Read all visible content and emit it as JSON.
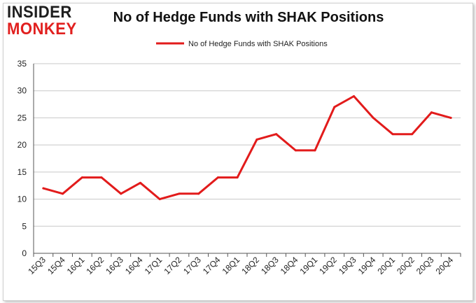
{
  "logo": {
    "line1": "INSIDER",
    "line2": "MONKEY"
  },
  "colors": {
    "series": "#e21b1b",
    "grid": "#c8c8c8",
    "axis": "#555555",
    "logo_dark": "#1e1e1e",
    "logo_red": "#e1201f"
  },
  "chart_data": {
    "type": "line",
    "title": "No of Hedge Funds with SHAK Positions",
    "xlabel": "",
    "ylabel": "",
    "categories": [
      "15Q3",
      "15Q4",
      "16Q1",
      "16Q2",
      "16Q3",
      "16Q4",
      "17Q1",
      "17Q2",
      "17Q3",
      "17Q4",
      "18Q1",
      "18Q2",
      "18Q3",
      "18Q4",
      "19Q1",
      "19Q2",
      "19Q3",
      "19Q4",
      "20Q1",
      "20Q2",
      "20Q3",
      "20Q4"
    ],
    "series": [
      {
        "name": "No of Hedge Funds with SHAK Positions",
        "values": [
          12,
          11,
          14,
          14,
          11,
          13,
          10,
          11,
          11,
          14,
          14,
          21,
          22,
          19,
          19,
          27,
          29,
          25,
          22,
          22,
          26,
          25
        ]
      }
    ],
    "ylim": [
      0,
      35
    ],
    "yticks": [
      0,
      5,
      10,
      15,
      20,
      25,
      30,
      35
    ],
    "grid": true,
    "legend": "top-center"
  }
}
